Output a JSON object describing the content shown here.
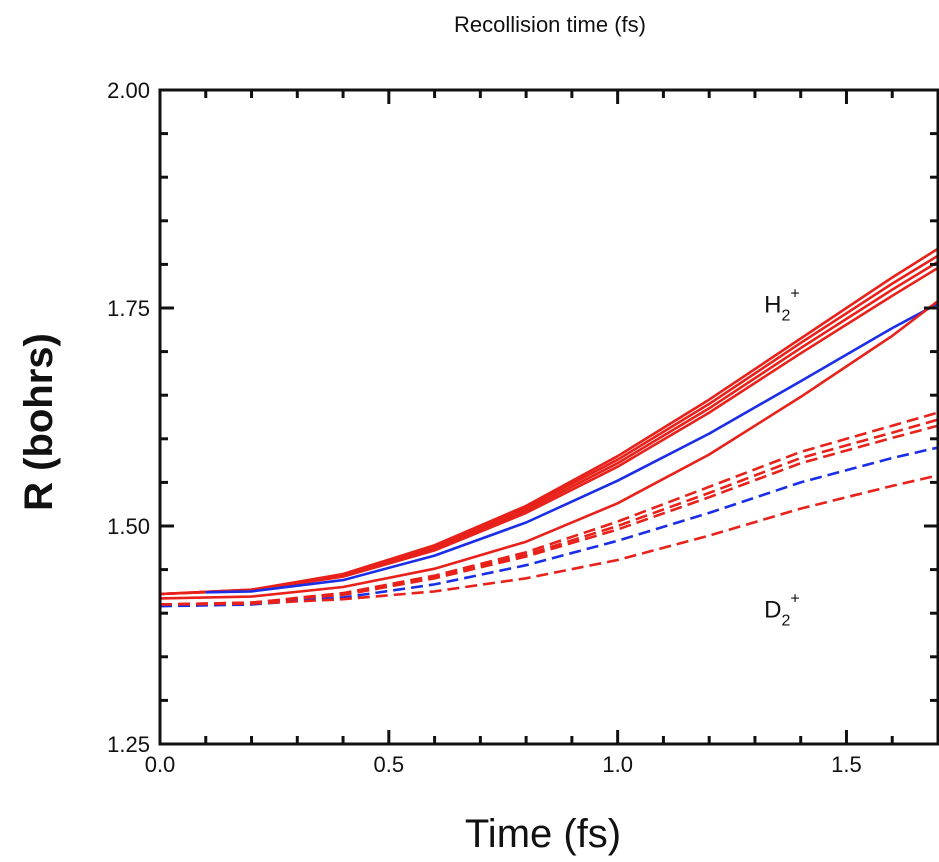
{
  "chart_data": {
    "type": "line",
    "top_label": "Recollision time (fs)",
    "xlabel": "Time (fs)",
    "ylabel": "R (bohrs)",
    "xlim": [
      0.0,
      1.7
    ],
    "ylim": [
      1.25,
      2.0
    ],
    "x_ticks": [
      "0.0",
      "0.5",
      "1.0",
      "1.5"
    ],
    "y_ticks": [
      "1.25",
      "1.50",
      "1.75",
      "2.00"
    ],
    "annotations": [
      {
        "text": "H",
        "sub": "2",
        "sup": "+",
        "x": 1.32,
        "y": 1.745
      },
      {
        "text": "D",
        "sub": "2",
        "sup": "+",
        "x": 1.32,
        "y": 1.395
      }
    ],
    "series_color_red": "#e8211a",
    "series_color_blue": "#1a2ee8",
    "series": [
      {
        "group": "H2+",
        "style": "solid",
        "color": "red",
        "x": [
          0.0,
          0.2,
          0.4,
          0.6,
          0.8,
          1.0,
          1.2,
          1.4,
          1.6,
          1.7
        ],
        "y": [
          1.422,
          1.427,
          1.445,
          1.478,
          1.523,
          1.58,
          1.645,
          1.715,
          1.785,
          1.818
        ]
      },
      {
        "group": "H2+",
        "style": "solid",
        "color": "red",
        "x": [
          0.0,
          0.2,
          0.4,
          0.6,
          0.8,
          1.0,
          1.2,
          1.4,
          1.6,
          1.7
        ],
        "y": [
          1.422,
          1.427,
          1.444,
          1.476,
          1.521,
          1.576,
          1.64,
          1.71,
          1.778,
          1.81
        ]
      },
      {
        "group": "H2+",
        "style": "solid",
        "color": "red",
        "x": [
          0.0,
          0.2,
          0.4,
          0.6,
          0.8,
          1.0,
          1.2,
          1.4,
          1.6,
          1.7
        ],
        "y": [
          1.422,
          1.426,
          1.443,
          1.474,
          1.518,
          1.572,
          1.635,
          1.704,
          1.771,
          1.803
        ]
      },
      {
        "group": "H2+",
        "style": "solid",
        "color": "red",
        "x": [
          0.0,
          0.2,
          0.4,
          0.6,
          0.8,
          1.0,
          1.2,
          1.4,
          1.6,
          1.7
        ],
        "y": [
          1.422,
          1.426,
          1.442,
          1.472,
          1.515,
          1.568,
          1.63,
          1.698,
          1.764,
          1.796
        ]
      },
      {
        "group": "H2+",
        "style": "solid",
        "color": "blue",
        "x": [
          0.1,
          0.2,
          0.4,
          0.6,
          0.8,
          1.0,
          1.2,
          1.4,
          1.6,
          1.7
        ],
        "y": [
          1.424,
          1.425,
          1.438,
          1.466,
          1.504,
          1.552,
          1.606,
          1.666,
          1.727,
          1.755
        ]
      },
      {
        "group": "H2+",
        "style": "solid",
        "color": "red",
        "x": [
          0.0,
          0.2,
          0.4,
          0.6,
          0.8,
          1.0,
          1.2,
          1.4,
          1.6,
          1.7
        ],
        "y": [
          1.417,
          1.419,
          1.43,
          1.451,
          1.482,
          1.526,
          1.582,
          1.648,
          1.718,
          1.758
        ]
      },
      {
        "group": "D2+",
        "style": "dashed",
        "color": "red",
        "x": [
          0.0,
          0.2,
          0.4,
          0.6,
          0.8,
          1.0,
          1.2,
          1.4,
          1.6,
          1.7
        ],
        "y": [
          1.41,
          1.412,
          1.423,
          1.443,
          1.47,
          1.505,
          1.545,
          1.585,
          1.615,
          1.63
        ]
      },
      {
        "group": "D2+",
        "style": "dashed",
        "color": "red",
        "x": [
          0.0,
          0.2,
          0.4,
          0.6,
          0.8,
          1.0,
          1.2,
          1.4,
          1.6,
          1.7
        ],
        "y": [
          1.41,
          1.412,
          1.422,
          1.441,
          1.467,
          1.5,
          1.538,
          1.578,
          1.607,
          1.622
        ]
      },
      {
        "group": "D2+",
        "style": "dashed",
        "color": "red",
        "x": [
          0.0,
          0.2,
          0.4,
          0.6,
          0.8,
          1.0,
          1.2,
          1.4,
          1.6,
          1.7
        ],
        "y": [
          1.41,
          1.412,
          1.421,
          1.44,
          1.465,
          1.496,
          1.533,
          1.572,
          1.601,
          1.615
        ]
      },
      {
        "group": "D2+",
        "style": "dashed",
        "color": "blue",
        "x": [
          0.0,
          0.2,
          0.4,
          0.6,
          0.8,
          1.0,
          1.2,
          1.4,
          1.6,
          1.7
        ],
        "y": [
          1.408,
          1.41,
          1.418,
          1.433,
          1.455,
          1.483,
          1.515,
          1.55,
          1.578,
          1.59
        ]
      },
      {
        "group": "D2+",
        "style": "dashed",
        "color": "red",
        "x": [
          0.0,
          0.2,
          0.4,
          0.6,
          0.8,
          1.0,
          1.2,
          1.4,
          1.6,
          1.7
        ],
        "y": [
          1.41,
          1.411,
          1.416,
          1.425,
          1.44,
          1.461,
          1.489,
          1.52,
          1.546,
          1.558
        ]
      }
    ]
  }
}
